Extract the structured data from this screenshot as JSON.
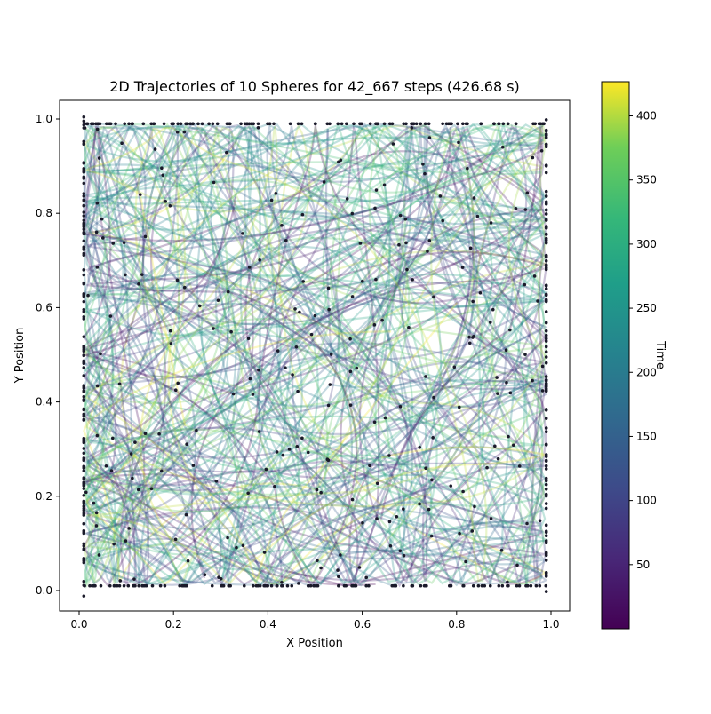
{
  "chart_data": {
    "type": "line",
    "title": "2D Trajectories of 10 Spheres for 42_667 steps (426.68 s)",
    "xlabel": "X Position",
    "ylabel": "Y Position",
    "xlim": [
      -0.04,
      1.04
    ],
    "ylim": [
      -0.04,
      1.04
    ],
    "xticks": [
      0.0,
      0.2,
      0.4,
      0.6,
      0.8,
      1.0
    ],
    "xtick_labels": [
      "0.0",
      "0.2",
      "0.4",
      "0.6",
      "0.8",
      "1.0"
    ],
    "yticks": [
      0.0,
      0.2,
      0.4,
      0.6,
      0.8,
      1.0
    ],
    "ytick_labels": [
      "0.0",
      "0.2",
      "0.4",
      "0.6",
      "0.8",
      "1.0"
    ],
    "num_spheres": 10,
    "steps": 42667,
    "duration_s": 426.68,
    "bounds": [
      0.01,
      0.99
    ],
    "colorbar": {
      "label": "Time",
      "colormap": "viridis",
      "range": [
        0,
        426.68
      ],
      "ticks": [
        50,
        100,
        150,
        200,
        250,
        300,
        350,
        400
      ],
      "tick_labels": [
        "50",
        "100",
        "150",
        "200",
        "250",
        "300",
        "350",
        "400"
      ]
    },
    "grid": false
  }
}
